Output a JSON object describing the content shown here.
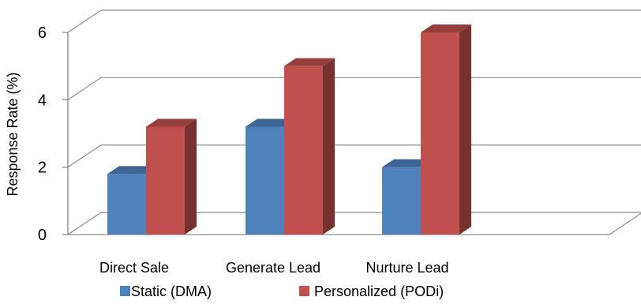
{
  "chart_data": {
    "type": "bar",
    "title": "",
    "xlabel": "",
    "ylabel": "Response Rate (%)",
    "ylim": [
      0,
      6
    ],
    "yticks": [
      "0",
      "2",
      "4",
      "6"
    ],
    "categories": [
      "Direct Sale",
      "Generate Lead",
      "Nurture Lead"
    ],
    "series": [
      {
        "name": "Static (DMA)",
        "values": [
          1.8,
          3.2,
          2.0
        ],
        "color": "#4F81BD"
      },
      {
        "name": "Personalized (PODi)",
        "values": [
          3.2,
          5.0,
          6.0
        ],
        "color": "#C0504D"
      }
    ],
    "grid": true,
    "legend": "bottom",
    "style": "3d-clustered-column"
  }
}
